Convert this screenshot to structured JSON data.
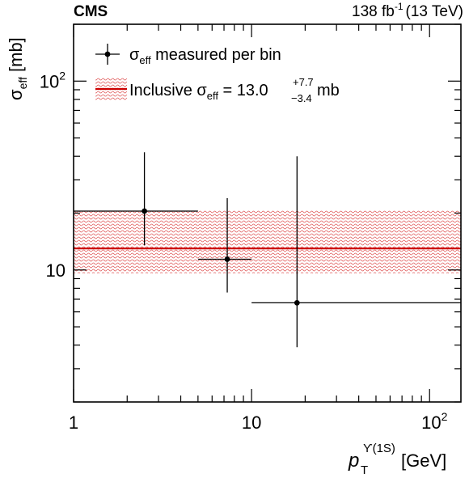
{
  "header": {
    "experiment": "CMS",
    "lumi_value": "138 fb",
    "lumi_exp": "-1",
    "energy": "(13 TeV)"
  },
  "colors": {
    "band": "#e05a5a",
    "central_line": "#cc0000",
    "points": "#000000"
  },
  "legend": {
    "entries": [
      {
        "sym": "σ",
        "sub": "eff",
        "text": " measured per bin",
        "style": "point"
      },
      {
        "pre": "Inclusive ",
        "sym": "σ",
        "sub": "eff",
        "text": " = 13.0",
        "sup": "+7.7",
        "low": "−3.4",
        "unit": " mb",
        "style": "band"
      }
    ]
  },
  "chart_data": {
    "type": "scatter",
    "log_x": true,
    "log_y": true,
    "xlim": [
      1,
      150
    ],
    "ylim": [
      2,
      200
    ],
    "xlabel": {
      "sym": "p",
      "sub": "T",
      "sup": "ϒ(1S)",
      "unit": " [GeV]"
    },
    "ylabel": {
      "sym": "σ",
      "sub": "eff",
      "unit": " [mb]"
    },
    "x_ticks": [
      {
        "v": 1,
        "base": "1",
        "exp": ""
      },
      {
        "v": 10,
        "base": "10",
        "exp": ""
      },
      {
        "v": 100,
        "base": "10",
        "exp": "2"
      }
    ],
    "y_ticks": [
      {
        "v": 10,
        "base": "10",
        "exp": ""
      },
      {
        "v": 100,
        "base": "10",
        "exp": "2"
      }
    ],
    "series": [
      {
        "name": "σeff measured per bin",
        "points": [
          {
            "x": 2.5,
            "xlo": 1,
            "xhi": 5,
            "y": 20.5,
            "ylo": 13.5,
            "yhi": 42
          },
          {
            "x": 7.3,
            "xlo": 5,
            "xhi": 10,
            "y": 11.4,
            "ylo": 7.6,
            "yhi": 24
          },
          {
            "x": 18,
            "xlo": 10,
            "xhi": 150,
            "y": 6.7,
            "ylo": 3.9,
            "yhi": 40
          }
        ]
      }
    ],
    "band": {
      "name": "Inclusive σeff = 13.0 +7.7 −3.4 mb",
      "value": 13.0,
      "plus": 7.7,
      "minus": 3.4,
      "x_range": [
        1,
        150
      ]
    }
  }
}
